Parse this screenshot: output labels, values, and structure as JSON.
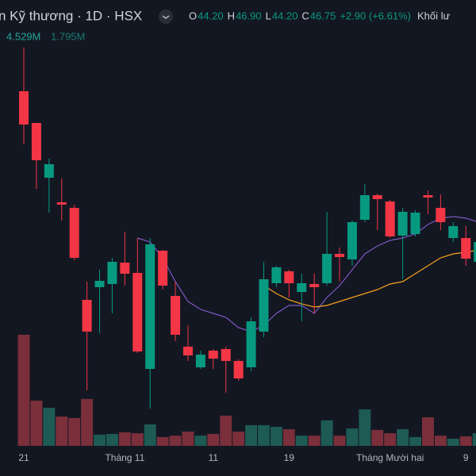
{
  "header": {
    "title": "n Kỹ thương · 1D · HSX",
    "ohlc": [
      {
        "label": "O",
        "value": "44.20"
      },
      {
        "label": "H",
        "value": "46.90"
      },
      {
        "label": "L",
        "value": "44.20"
      },
      {
        "label": "C",
        "value": "46.75"
      }
    ],
    "change": "+2.90 (+6.61%)",
    "volume_title": "Khối lư",
    "volume_values": [
      "4.529M",
      "1.795M"
    ]
  },
  "chart_data": {
    "type": "candlestick",
    "categories": [
      "21",
      null,
      null,
      null,
      null,
      null,
      null,
      null,
      "Tháng 11",
      null,
      null,
      null,
      null,
      null,
      null,
      "11",
      null,
      null,
      null,
      null,
      null,
      "19",
      null,
      null,
      null,
      null,
      null,
      null,
      null,
      "Tháng Mười hai",
      null,
      null,
      null,
      null,
      null,
      "9",
      null
    ],
    "open": [
      50.55,
      49.35,
      47.28,
      46.35,
      46.14,
      42.66,
      43.14,
      43.26,
      44.07,
      43.68,
      40.05,
      44.52,
      42.81,
      40.89,
      40.11,
      40.74,
      40.8,
      40.35,
      40.11,
      41.46,
      43.29,
      43.74,
      42.96,
      43.26,
      43.29,
      44.4,
      44.19,
      45.69,
      46.62,
      46.38,
      45.09,
      45.15,
      46.62,
      46.14,
      45.0,
      45.0,
      44.1
    ],
    "high": [
      52.2,
      49.35,
      48.0,
      47.25,
      46.26,
      43.35,
      43.8,
      44.25,
      45.24,
      45.0,
      45.0,
      44.55,
      43.35,
      41.7,
      40.74,
      40.8,
      40.89,
      40.41,
      42.0,
      44.1,
      43.95,
      43.8,
      43.65,
      43.65,
      45.99,
      44.64,
      45.66,
      47.04,
      46.68,
      46.44,
      46.14,
      46.05,
      46.8,
      46.65,
      45.6,
      45.45,
      45.0
    ],
    "low": [
      48.54,
      46.86,
      45.96,
      45.66,
      44.16,
      39.24,
      41.4,
      42.15,
      43.2,
      40.65,
      38.55,
      43.05,
      41.1,
      40.35,
      40.05,
      40.05,
      39.15,
      39.6,
      39.96,
      41.25,
      43.14,
      42.75,
      41.85,
      42.15,
      43.2,
      43.35,
      43.95,
      45.6,
      45.3,
      45.0,
      43.44,
      45.06,
      45.9,
      45.3,
      44.85,
      43.95,
      43.95
    ],
    "close": [
      49.29,
      47.94,
      47.79,
      46.26,
      44.25,
      41.46,
      43.38,
      44.1,
      43.65,
      40.71,
      44.76,
      43.2,
      41.34,
      40.56,
      40.59,
      40.44,
      40.35,
      39.69,
      41.85,
      43.44,
      43.89,
      43.29,
      43.29,
      43.14,
      44.4,
      44.28,
      45.6,
      46.62,
      46.47,
      45.06,
      45.99,
      45.96,
      46.53,
      45.6,
      45.45,
      44.22,
      44.85
    ],
    "volume": [
      4.67,
      1.9,
      1.6,
      1.23,
      1.17,
      1.97,
      0.47,
      0.5,
      0.57,
      0.53,
      0.9,
      0.37,
      0.43,
      0.6,
      0.43,
      0.5,
      1.27,
      0.6,
      0.87,
      0.87,
      0.8,
      0.7,
      0.43,
      0.43,
      1.07,
      0.43,
      0.73,
      1.53,
      0.67,
      0.53,
      0.7,
      0.37,
      1.2,
      0.43,
      0.3,
      0.4,
      0.53
    ],
    "series": [
      {
        "color": "#7e57c2",
        "values": [
          null,
          null,
          null,
          null,
          null,
          null,
          null,
          null,
          null,
          45.0,
          44.85,
          44.25,
          43.35,
          42.6,
          42.3,
          42.15,
          42.0,
          41.61,
          41.46,
          41.7,
          42.15,
          42.45,
          42.45,
          42.15,
          42.75,
          43.2,
          43.8,
          44.4,
          44.7,
          44.91,
          45.0,
          45.15,
          45.51,
          45.75,
          45.81,
          45.75,
          45.6
        ]
      },
      {
        "color": "#f7a21b",
        "values": [
          null,
          null,
          null,
          null,
          null,
          null,
          null,
          null,
          null,
          null,
          null,
          null,
          null,
          null,
          null,
          null,
          null,
          null,
          null,
          43.2,
          42.9,
          42.66,
          42.51,
          42.39,
          42.45,
          42.6,
          42.75,
          42.9,
          43.05,
          43.26,
          43.35,
          43.65,
          43.95,
          44.25,
          44.4,
          44.46,
          44.55
        ]
      }
    ],
    "up_color": "#089981",
    "down_color": "#f23645",
    "volume_up_color": "#1e5b55",
    "volume_down_color": "#7a2f3a",
    "ylim": [
      37.2,
      54
    ],
    "y2lim": [
      0,
      6
    ]
  }
}
